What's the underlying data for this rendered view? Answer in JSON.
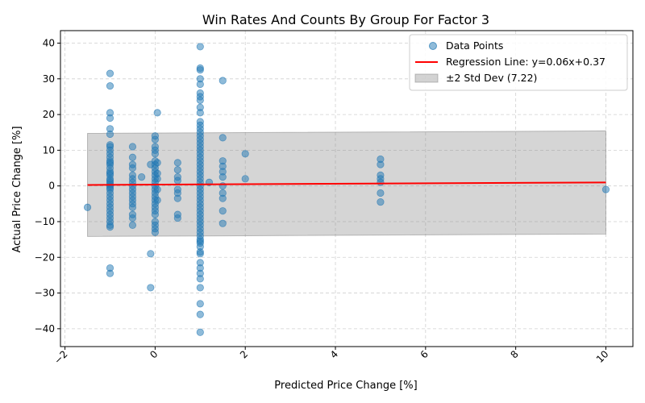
{
  "chart_data": {
    "type": "scatter",
    "title": "Win Rates And Counts By Group For Factor 3",
    "xlabel": "Predicted Price Change [%]",
    "ylabel": "Actual Price Change [%]",
    "xlim": [
      -2.1,
      10.6
    ],
    "ylim": [
      -45,
      43.5
    ],
    "xticks": [
      -2,
      0,
      2,
      4,
      6,
      8,
      10
    ],
    "xtick_labels": [
      "−2",
      "0",
      "2",
      "4",
      "6",
      "8",
      "10"
    ],
    "yticks": [
      -40,
      -30,
      -20,
      -10,
      0,
      10,
      20,
      30,
      40
    ],
    "ytick_labels": [
      "−40",
      "−30",
      "−20",
      "−10",
      "0",
      "10",
      "20",
      "30",
      "40"
    ],
    "xtick_rotation": 45,
    "grid": "dashed, both axes",
    "legend_position": "top-right",
    "legend": [
      {
        "label": "Data Points",
        "kind": "marker",
        "color": "#1f77b4"
      },
      {
        "label": "Regression Line: y=0.06x+0.37",
        "kind": "line",
        "color": "#ff0000"
      },
      {
        "label": "±2 Std Dev (7.22)",
        "kind": "patch",
        "color": "#808080"
      }
    ],
    "regression": {
      "slope": 0.06,
      "intercept": 0.37,
      "x_range": [
        -1.5,
        10
      ]
    },
    "band": {
      "half_width": 14.44,
      "std": 7.22,
      "x_range": [
        -1.5,
        10
      ]
    },
    "point_color": "#1f77b4",
    "point_groups": [
      {
        "x": -1.5,
        "y": [
          -6
        ]
      },
      {
        "x": -1,
        "y": [
          31.5,
          28,
          20.5,
          19,
          16,
          14.5,
          11.5,
          11,
          10,
          9,
          8,
          7,
          6.5,
          6,
          5,
          4,
          3.5,
          3,
          2,
          1.5,
          1,
          0.5,
          0,
          -0.5,
          -1,
          -2,
          -3,
          -4,
          -5,
          -6,
          -7,
          -8,
          -9,
          -10,
          -11,
          -11.5,
          -23,
          -24.5
        ]
      },
      {
        "x": -0.5,
        "y": [
          11,
          8,
          6,
          5,
          3,
          2,
          1,
          0,
          -1,
          -2,
          -3,
          -4,
          -5,
          -6,
          -8,
          -9,
          -11
        ]
      },
      {
        "x": -0.3,
        "y": [
          2.5
        ]
      },
      {
        "x": -0.1,
        "y": [
          6,
          -19,
          -28.5
        ]
      },
      {
        "x": 0,
        "y": [
          14,
          13,
          11,
          10,
          9,
          7,
          6,
          5,
          4,
          3,
          2,
          1,
          0,
          -1,
          -2,
          -3,
          -4,
          -5,
          -6,
          -7,
          -8,
          -10,
          -11,
          -12,
          -13
        ]
      },
      {
        "x": 0.05,
        "y": [
          20.5,
          6.5,
          3.5,
          2,
          -1,
          -4
        ]
      },
      {
        "x": 0.5,
        "y": [
          6.5,
          4.5,
          2.5,
          1.5,
          -1,
          -2,
          -3.5,
          -8,
          -9
        ]
      },
      {
        "x": 1,
        "y": [
          39,
          33,
          32.5,
          30,
          28.5,
          26,
          25,
          24,
          22,
          20.5,
          18,
          17,
          16,
          15,
          14,
          13,
          12,
          11,
          10,
          9,
          8,
          7,
          6,
          5,
          4,
          3,
          2,
          1,
          0,
          -1,
          -2,
          -3,
          -4,
          -5,
          -6,
          -7,
          -8,
          -9,
          -10,
          -11,
          -12,
          -13,
          -14,
          -15,
          -15.5,
          -16,
          -17,
          -18.5,
          -19,
          -21.5,
          -23,
          -24.5,
          -26,
          -28.5,
          -33,
          -36,
          -41
        ]
      },
      {
        "x": 1.2,
        "y": [
          1
        ]
      },
      {
        "x": 1.5,
        "y": [
          29.5,
          13.5,
          7,
          5.5,
          4,
          2.5,
          0,
          -2,
          -3.5,
          -7,
          -10.5
        ]
      },
      {
        "x": 2,
        "y": [
          9,
          2
        ]
      },
      {
        "x": 5,
        "y": [
          7.5,
          6,
          3,
          2,
          1,
          -2,
          -4.5
        ]
      },
      {
        "x": 10,
        "y": [
          -1
        ]
      }
    ]
  }
}
